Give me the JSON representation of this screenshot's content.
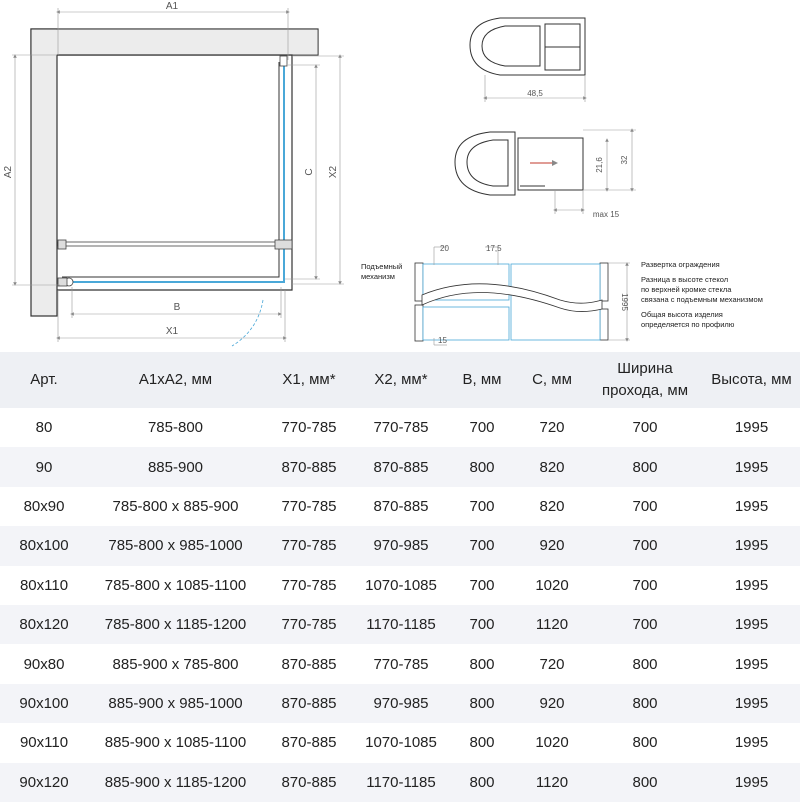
{
  "plan_labels": {
    "a1": "A1",
    "a2": "A2",
    "c": "C",
    "x2": "X2",
    "b": "B",
    "x1": "X1"
  },
  "profile_labels": {
    "width_1": "48,5",
    "h1": "21,6",
    "h2": "32",
    "max": "max 15"
  },
  "unfold": {
    "mech_label_1": "Подъемный",
    "mech_label_2": "механизм",
    "d20": "20",
    "d175": "17,5",
    "d15": "15",
    "d1995": "1995",
    "note_title": "Развертка ограждения",
    "note_2": [
      "Разница в высоте стекол",
      "по верхней кромке стекла",
      "связана с подъемным механизмом"
    ],
    "note_3": [
      "Общая высота изделия",
      "определяется по профилю"
    ]
  },
  "colors": {
    "glass": "#4aa8d8",
    "wall": "#ececec",
    "header_bg": "#eef0f4",
    "row_alt": "#f3f4f8",
    "arrow": "#c0392b"
  },
  "table": {
    "headers": [
      "Арт.",
      "A1xA2, мм",
      "X1, мм*",
      "X2, мм*",
      "B, мм",
      "C, мм",
      "Ширина проходa, мм",
      "Высота, мм"
    ],
    "header_width_1": "Ширина",
    "header_width_2": "прохода, мм",
    "rows": [
      [
        "80",
        "785-800",
        "770-785",
        "770-785",
        "700",
        "720",
        "700",
        "1995"
      ],
      [
        "90",
        "885-900",
        "870-885",
        "870-885",
        "800",
        "820",
        "800",
        "1995"
      ],
      [
        "80x90",
        "785-800 x 885-900",
        "770-785",
        "870-885",
        "700",
        "820",
        "700",
        "1995"
      ],
      [
        "80x100",
        "785-800 x 985-1000",
        "770-785",
        "970-985",
        "700",
        "920",
        "700",
        "1995"
      ],
      [
        "80x110",
        "785-800 x 1085-1100",
        "770-785",
        "1070-1085",
        "700",
        "1020",
        "700",
        "1995"
      ],
      [
        "80x120",
        "785-800 x 1185-1200",
        "770-785",
        "1170-1185",
        "700",
        "1120",
        "700",
        "1995"
      ],
      [
        "90x80",
        "885-900 x 785-800",
        "870-885",
        "770-785",
        "800",
        "720",
        "800",
        "1995"
      ],
      [
        "90x100",
        "885-900 x 985-1000",
        "870-885",
        "970-985",
        "800",
        "920",
        "800",
        "1995"
      ],
      [
        "90x110",
        "885-900 x 1085-1100",
        "870-885",
        "1070-1085",
        "800",
        "1020",
        "800",
        "1995"
      ],
      [
        "90x120",
        "885-900 x 1185-1200",
        "870-885",
        "1170-1185",
        "800",
        "1120",
        "800",
        "1995"
      ]
    ]
  }
}
